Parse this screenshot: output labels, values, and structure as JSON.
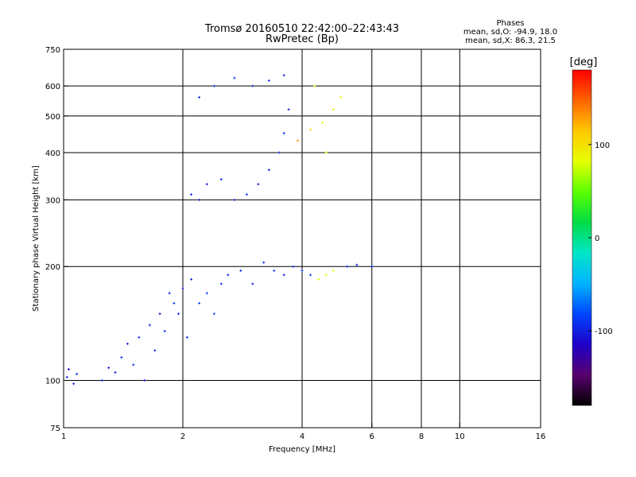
{
  "chart_data": {
    "type": "scatter",
    "title": "Tromsø 20160510 22:42:00–22:43:43",
    "subtitle": "RwPretec (Bp)",
    "xlabel": "Frequency [MHz]",
    "ylabel": "Stationary phase Virtual Height [km]",
    "x_scale": "log",
    "y_scale": "log",
    "xlim": [
      1,
      16
    ],
    "ylim": [
      75,
      750
    ],
    "x_ticks": [
      1,
      2,
      4,
      6,
      8,
      10,
      16
    ],
    "x_tick_labels": [
      "1",
      "2",
      "4",
      "6",
      "8",
      "10",
      "16"
    ],
    "x_gridlines": [
      2,
      4,
      6,
      8,
      10
    ],
    "y_ticks": [
      75,
      100,
      200,
      300,
      400,
      500,
      600,
      750
    ],
    "y_tick_labels": [
      "75",
      "100",
      "200",
      "300",
      "400",
      "500",
      "600",
      "750"
    ],
    "y_gridlines": [
      100,
      200,
      300,
      400,
      500,
      600
    ],
    "grid": true,
    "stats": {
      "heading": "Phases",
      "line_o": "mean, sd,O: -94.9, 18.0",
      "line_x": "mean, sd,X:  86.3, 21.5"
    },
    "colorbar": {
      "label": "[deg]",
      "range": [
        -180,
        180
      ],
      "ticks": [
        100,
        0,
        -100
      ],
      "tick_labels": [
        "100",
        "0",
        "-100"
      ],
      "colormap": [
        "#000000",
        "#5a006e",
        "#1e00c8",
        "#0046ff",
        "#00b4ff",
        "#00e6c8",
        "#00dc46",
        "#5aff00",
        "#e6ff00",
        "#ffc800",
        "#ff6400",
        "#ff0000"
      ]
    },
    "series": [
      {
        "x": 1.02,
        "y": 102,
        "phase": -100
      },
      {
        "x": 1.06,
        "y": 98,
        "phase": -100
      },
      {
        "x": 1.03,
        "y": 107,
        "phase": -110
      },
      {
        "x": 1.08,
        "y": 104,
        "phase": -95
      },
      {
        "x": 1.25,
        "y": 100,
        "phase": -100
      },
      {
        "x": 1.3,
        "y": 108,
        "phase": -110
      },
      {
        "x": 1.35,
        "y": 105,
        "phase": -100
      },
      {
        "x": 1.4,
        "y": 115,
        "phase": -95
      },
      {
        "x": 1.45,
        "y": 125,
        "phase": -100
      },
      {
        "x": 1.5,
        "y": 110,
        "phase": -90
      },
      {
        "x": 1.55,
        "y": 130,
        "phase": -100
      },
      {
        "x": 1.6,
        "y": 100,
        "phase": -110
      },
      {
        "x": 1.65,
        "y": 140,
        "phase": -95
      },
      {
        "x": 1.7,
        "y": 120,
        "phase": -100
      },
      {
        "x": 1.75,
        "y": 150,
        "phase": -110
      },
      {
        "x": 1.8,
        "y": 135,
        "phase": -95
      },
      {
        "x": 1.85,
        "y": 170,
        "phase": -100
      },
      {
        "x": 1.9,
        "y": 160,
        "phase": -90
      },
      {
        "x": 1.95,
        "y": 150,
        "phase": -100
      },
      {
        "x": 2.0,
        "y": 175,
        "phase": -105
      },
      {
        "x": 2.05,
        "y": 130,
        "phase": -95
      },
      {
        "x": 2.1,
        "y": 185,
        "phase": -100
      },
      {
        "x": 2.2,
        "y": 160,
        "phase": -85
      },
      {
        "x": 2.3,
        "y": 170,
        "phase": -90
      },
      {
        "x": 2.4,
        "y": 150,
        "phase": -80
      },
      {
        "x": 2.5,
        "y": 180,
        "phase": -95
      },
      {
        "x": 2.6,
        "y": 190,
        "phase": -100
      },
      {
        "x": 2.8,
        "y": 195,
        "phase": -95
      },
      {
        "x": 3.0,
        "y": 180,
        "phase": -100
      },
      {
        "x": 3.2,
        "y": 205,
        "phase": -95
      },
      {
        "x": 3.4,
        "y": 195,
        "phase": -90
      },
      {
        "x": 3.6,
        "y": 190,
        "phase": -100
      },
      {
        "x": 3.8,
        "y": 200,
        "phase": -95
      },
      {
        "x": 4.0,
        "y": 195,
        "phase": -85
      },
      {
        "x": 4.2,
        "y": 190,
        "phase": -90
      },
      {
        "x": 4.4,
        "y": 185,
        "phase": 80
      },
      {
        "x": 4.6,
        "y": 190,
        "phase": 90
      },
      {
        "x": 4.8,
        "y": 195,
        "phase": 85
      },
      {
        "x": 5.2,
        "y": 200,
        "phase": -95
      },
      {
        "x": 5.5,
        "y": 202,
        "phase": -100
      },
      {
        "x": 6.0,
        "y": 200,
        "phase": -90
      },
      {
        "x": 2.1,
        "y": 310,
        "phase": -100
      },
      {
        "x": 2.2,
        "y": 300,
        "phase": -95
      },
      {
        "x": 2.3,
        "y": 330,
        "phase": -100
      },
      {
        "x": 2.5,
        "y": 340,
        "phase": -90
      },
      {
        "x": 2.7,
        "y": 300,
        "phase": -100
      },
      {
        "x": 2.9,
        "y": 310,
        "phase": -95
      },
      {
        "x": 3.1,
        "y": 330,
        "phase": -100
      },
      {
        "x": 3.3,
        "y": 360,
        "phase": -95
      },
      {
        "x": 3.5,
        "y": 400,
        "phase": -100
      },
      {
        "x": 3.6,
        "y": 450,
        "phase": -90
      },
      {
        "x": 3.7,
        "y": 520,
        "phase": -100
      },
      {
        "x": 2.2,
        "y": 560,
        "phase": -100
      },
      {
        "x": 2.4,
        "y": 600,
        "phase": -95
      },
      {
        "x": 2.7,
        "y": 630,
        "phase": -90
      },
      {
        "x": 3.0,
        "y": 600,
        "phase": -100
      },
      {
        "x": 3.3,
        "y": 620,
        "phase": -95
      },
      {
        "x": 3.6,
        "y": 640,
        "phase": -100
      },
      {
        "x": 3.9,
        "y": 430,
        "phase": 130
      },
      {
        "x": 4.2,
        "y": 460,
        "phase": 100
      },
      {
        "x": 4.5,
        "y": 480,
        "phase": 85
      },
      {
        "x": 4.8,
        "y": 520,
        "phase": 95
      },
      {
        "x": 5.0,
        "y": 560,
        "phase": 90
      },
      {
        "x": 4.3,
        "y": 600,
        "phase": 80
      },
      {
        "x": 4.6,
        "y": 400,
        "phase": 90
      }
    ]
  }
}
